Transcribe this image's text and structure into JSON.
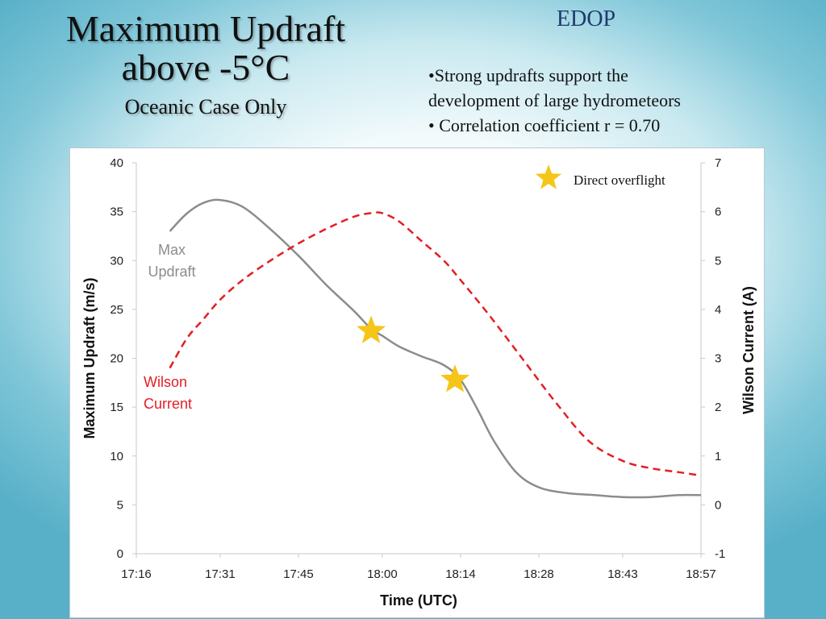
{
  "slide": {
    "title_line1": "Maximum Updraft",
    "title_line2": "above -5°C",
    "subtitle": "Oceanic Case Only",
    "tag": "EDOP",
    "bullet1_line1": "•Strong updrafts support the",
    "bullet1_line2": "development of large hydrometeors",
    "bullet2": "• Correlation coefficient r = 0.70"
  },
  "colors": {
    "updraft": "#8c8c8c",
    "wilson": "#e31e24",
    "star": "#f5c518",
    "axis": "#c8c8c8"
  },
  "chart_data": {
    "type": "line",
    "xlabel": "Time (UTC)",
    "ylabel": "Maximum Updraft (m/s)",
    "y2label": "Wilson Current (A)",
    "x_ticks": [
      "17:16",
      "17:31",
      "17:45",
      "18:00",
      "18:14",
      "18:28",
      "18:43",
      "18:57"
    ],
    "y_ticks": [
      "0",
      "5",
      "10",
      "15",
      "20",
      "25",
      "30",
      "35",
      "40"
    ],
    "y2_ticks": [
      "-1",
      "0",
      "1",
      "2",
      "3",
      "4",
      "5",
      "6",
      "7"
    ],
    "ylim": [
      0,
      40
    ],
    "y2lim": [
      -1,
      7
    ],
    "grid": false,
    "series": [
      {
        "name": "Max Updraft",
        "label_line1": "Max",
        "label_line2": "Updraft",
        "axis": "left",
        "style": "solid",
        "x": [
          "17:22",
          "17:25",
          "17:28",
          "17:31",
          "17:35",
          "17:40",
          "17:45",
          "17:50",
          "17:55",
          "17:58",
          "18:00",
          "18:03",
          "18:07",
          "18:11",
          "18:14",
          "18:17",
          "18:20",
          "18:24",
          "18:28",
          "18:33",
          "18:38",
          "18:43",
          "18:48",
          "18:53",
          "18:57"
        ],
        "values": [
          33.0,
          34.8,
          35.9,
          36.2,
          35.5,
          33.2,
          30.5,
          27.5,
          24.8,
          23.0,
          22.3,
          21.2,
          20.2,
          19.3,
          17.8,
          14.8,
          11.5,
          8.3,
          6.8,
          6.2,
          6.0,
          5.8,
          5.8,
          6.0,
          6.0
        ]
      },
      {
        "name": "Wilson Current",
        "label_line1": "Wilson",
        "label_line2": "Current",
        "axis": "right",
        "style": "dashed",
        "x": [
          "17:22",
          "17:25",
          "17:28",
          "17:31",
          "17:35",
          "17:40",
          "17:45",
          "17:50",
          "17:55",
          "17:58",
          "18:00",
          "18:03",
          "18:07",
          "18:11",
          "18:14",
          "18:19",
          "18:25",
          "18:31",
          "18:37",
          "18:43",
          "18:48",
          "18:53",
          "18:57"
        ],
        "values": [
          2.8,
          3.4,
          3.8,
          4.2,
          4.6,
          5.0,
          5.35,
          5.65,
          5.9,
          5.97,
          5.97,
          5.8,
          5.4,
          5.0,
          4.6,
          3.9,
          3.0,
          2.1,
          1.3,
          0.9,
          0.75,
          0.67,
          0.6
        ]
      }
    ],
    "markers": {
      "legend": "Direct overflight",
      "legend_placement": "top-right",
      "points": [
        {
          "x": "17:58",
          "y": 22.8
        },
        {
          "x": "18:13",
          "y": 17.8
        }
      ]
    }
  }
}
